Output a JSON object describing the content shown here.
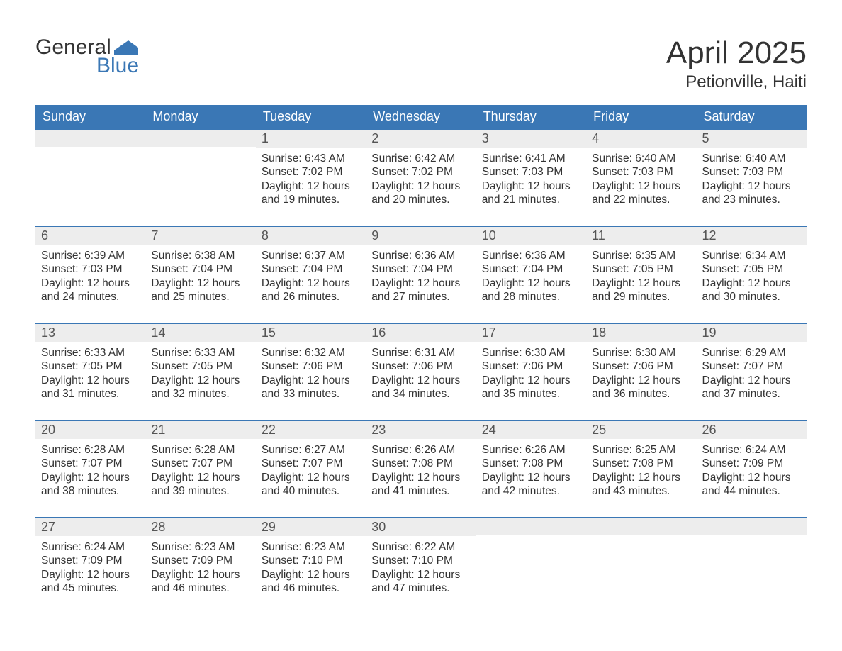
{
  "logo": {
    "line1": "General",
    "line2": "Blue",
    "accent_color": "#3a77b5"
  },
  "header": {
    "title": "April 2025",
    "location": "Petionville, Haiti"
  },
  "style": {
    "header_bg": "#3a77b5",
    "header_text": "#ffffff",
    "daynum_bg": "#ededed",
    "daynum_text": "#555555",
    "body_text": "#333333",
    "row_divider": "#3a77b5",
    "font_family": "Segoe UI, Arial, sans-serif",
    "title_fontsize_pt": 33,
    "location_fontsize_pt": 18,
    "dayheader_fontsize_pt": 14,
    "daynum_fontsize_pt": 14,
    "content_fontsize_pt": 12
  },
  "calendar": {
    "days_of_week": [
      "Sunday",
      "Monday",
      "Tuesday",
      "Wednesday",
      "Thursday",
      "Friday",
      "Saturday"
    ],
    "labels": {
      "sunrise": "Sunrise:",
      "sunset": "Sunset:",
      "daylight": "Daylight:"
    },
    "weeks": [
      [
        null,
        null,
        {
          "n": "1",
          "sunrise": "6:43 AM",
          "sunset": "7:02 PM",
          "daylight_l1": "12 hours",
          "daylight_l2": "and 19 minutes."
        },
        {
          "n": "2",
          "sunrise": "6:42 AM",
          "sunset": "7:02 PM",
          "daylight_l1": "12 hours",
          "daylight_l2": "and 20 minutes."
        },
        {
          "n": "3",
          "sunrise": "6:41 AM",
          "sunset": "7:03 PM",
          "daylight_l1": "12 hours",
          "daylight_l2": "and 21 minutes."
        },
        {
          "n": "4",
          "sunrise": "6:40 AM",
          "sunset": "7:03 PM",
          "daylight_l1": "12 hours",
          "daylight_l2": "and 22 minutes."
        },
        {
          "n": "5",
          "sunrise": "6:40 AM",
          "sunset": "7:03 PM",
          "daylight_l1": "12 hours",
          "daylight_l2": "and 23 minutes."
        }
      ],
      [
        {
          "n": "6",
          "sunrise": "6:39 AM",
          "sunset": "7:03 PM",
          "daylight_l1": "12 hours",
          "daylight_l2": "and 24 minutes."
        },
        {
          "n": "7",
          "sunrise": "6:38 AM",
          "sunset": "7:04 PM",
          "daylight_l1": "12 hours",
          "daylight_l2": "and 25 minutes."
        },
        {
          "n": "8",
          "sunrise": "6:37 AM",
          "sunset": "7:04 PM",
          "daylight_l1": "12 hours",
          "daylight_l2": "and 26 minutes."
        },
        {
          "n": "9",
          "sunrise": "6:36 AM",
          "sunset": "7:04 PM",
          "daylight_l1": "12 hours",
          "daylight_l2": "and 27 minutes."
        },
        {
          "n": "10",
          "sunrise": "6:36 AM",
          "sunset": "7:04 PM",
          "daylight_l1": "12 hours",
          "daylight_l2": "and 28 minutes."
        },
        {
          "n": "11",
          "sunrise": "6:35 AM",
          "sunset": "7:05 PM",
          "daylight_l1": "12 hours",
          "daylight_l2": "and 29 minutes."
        },
        {
          "n": "12",
          "sunrise": "6:34 AM",
          "sunset": "7:05 PM",
          "daylight_l1": "12 hours",
          "daylight_l2": "and 30 minutes."
        }
      ],
      [
        {
          "n": "13",
          "sunrise": "6:33 AM",
          "sunset": "7:05 PM",
          "daylight_l1": "12 hours",
          "daylight_l2": "and 31 minutes."
        },
        {
          "n": "14",
          "sunrise": "6:33 AM",
          "sunset": "7:05 PM",
          "daylight_l1": "12 hours",
          "daylight_l2": "and 32 minutes."
        },
        {
          "n": "15",
          "sunrise": "6:32 AM",
          "sunset": "7:06 PM",
          "daylight_l1": "12 hours",
          "daylight_l2": "and 33 minutes."
        },
        {
          "n": "16",
          "sunrise": "6:31 AM",
          "sunset": "7:06 PM",
          "daylight_l1": "12 hours",
          "daylight_l2": "and 34 minutes."
        },
        {
          "n": "17",
          "sunrise": "6:30 AM",
          "sunset": "7:06 PM",
          "daylight_l1": "12 hours",
          "daylight_l2": "and 35 minutes."
        },
        {
          "n": "18",
          "sunrise": "6:30 AM",
          "sunset": "7:06 PM",
          "daylight_l1": "12 hours",
          "daylight_l2": "and 36 minutes."
        },
        {
          "n": "19",
          "sunrise": "6:29 AM",
          "sunset": "7:07 PM",
          "daylight_l1": "12 hours",
          "daylight_l2": "and 37 minutes."
        }
      ],
      [
        {
          "n": "20",
          "sunrise": "6:28 AM",
          "sunset": "7:07 PM",
          "daylight_l1": "12 hours",
          "daylight_l2": "and 38 minutes."
        },
        {
          "n": "21",
          "sunrise": "6:28 AM",
          "sunset": "7:07 PM",
          "daylight_l1": "12 hours",
          "daylight_l2": "and 39 minutes."
        },
        {
          "n": "22",
          "sunrise": "6:27 AM",
          "sunset": "7:07 PM",
          "daylight_l1": "12 hours",
          "daylight_l2": "and 40 minutes."
        },
        {
          "n": "23",
          "sunrise": "6:26 AM",
          "sunset": "7:08 PM",
          "daylight_l1": "12 hours",
          "daylight_l2": "and 41 minutes."
        },
        {
          "n": "24",
          "sunrise": "6:26 AM",
          "sunset": "7:08 PM",
          "daylight_l1": "12 hours",
          "daylight_l2": "and 42 minutes."
        },
        {
          "n": "25",
          "sunrise": "6:25 AM",
          "sunset": "7:08 PM",
          "daylight_l1": "12 hours",
          "daylight_l2": "and 43 minutes."
        },
        {
          "n": "26",
          "sunrise": "6:24 AM",
          "sunset": "7:09 PM",
          "daylight_l1": "12 hours",
          "daylight_l2": "and 44 minutes."
        }
      ],
      [
        {
          "n": "27",
          "sunrise": "6:24 AM",
          "sunset": "7:09 PM",
          "daylight_l1": "12 hours",
          "daylight_l2": "and 45 minutes."
        },
        {
          "n": "28",
          "sunrise": "6:23 AM",
          "sunset": "7:09 PM",
          "daylight_l1": "12 hours",
          "daylight_l2": "and 46 minutes."
        },
        {
          "n": "29",
          "sunrise": "6:23 AM",
          "sunset": "7:10 PM",
          "daylight_l1": "12 hours",
          "daylight_l2": "and 46 minutes."
        },
        {
          "n": "30",
          "sunrise": "6:22 AM",
          "sunset": "7:10 PM",
          "daylight_l1": "12 hours",
          "daylight_l2": "and 47 minutes."
        },
        null,
        null,
        null
      ]
    ]
  }
}
